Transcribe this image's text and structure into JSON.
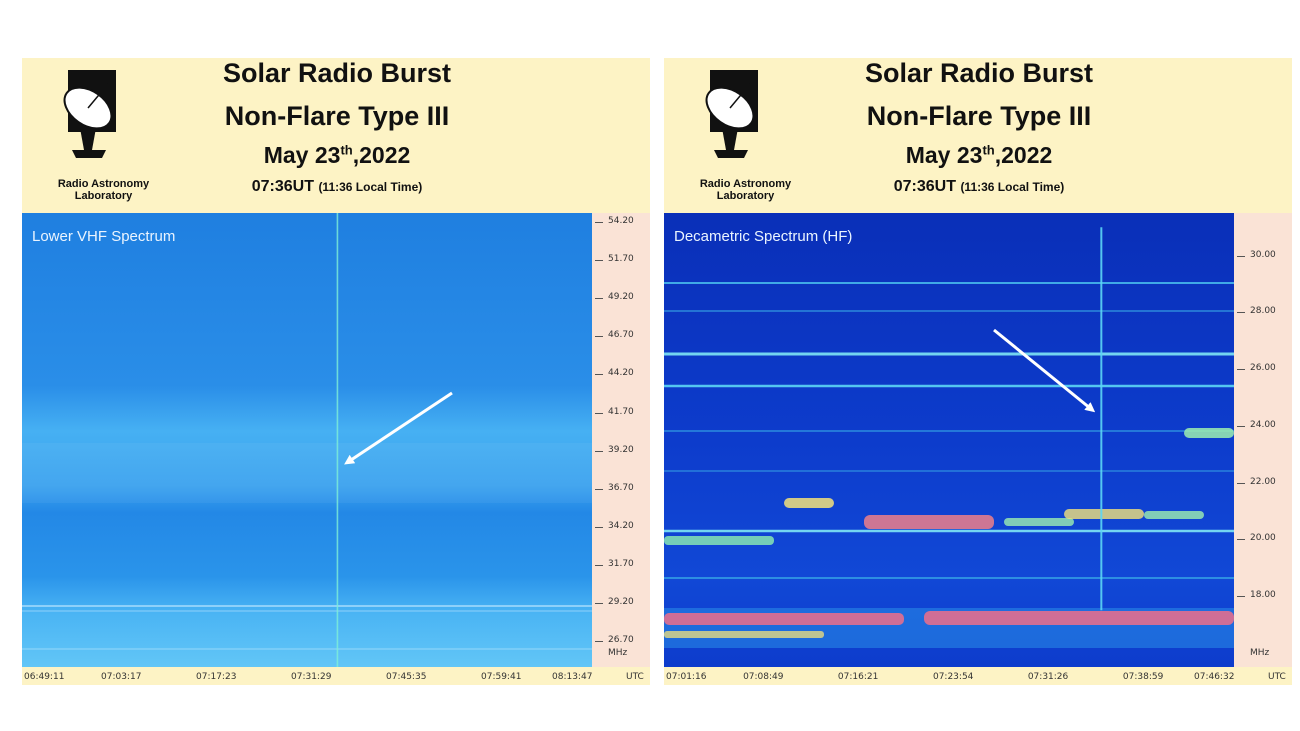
{
  "panels": [
    {
      "lab_name": "Radio Astronomy Laboratory",
      "title_line1": "Solar Radio Burst",
      "title_line2": "Non-Flare Type III",
      "date_main": "May 23",
      "date_sup": "th",
      "date_tail": ",2022",
      "time_main": "07:36UT",
      "time_local": "(11:36 Local Time)",
      "spectrum_label": "Lower VHF Spectrum",
      "y_unit": "MHz",
      "x_unit": "UTC",
      "colors": {
        "background": "#2a8ee8",
        "burst": "#7ff0d8",
        "arrow": "#ffffff"
      }
    },
    {
      "lab_name": "Radio Astronomy Laboratory",
      "title_line1": "Solar Radio Burst",
      "title_line2": "Non-Flare Type III",
      "date_main": "May 23",
      "date_sup": "th",
      "date_tail": ",2022",
      "time_main": "07:36UT",
      "time_local": "(11:36 Local Time)",
      "spectrum_label": "Decametric Spectrum (HF)",
      "y_unit": "MHz",
      "x_unit": "UTC",
      "colors": {
        "background": "#0d36c8",
        "burst": "#5cd6f5",
        "arrow": "#ffffff"
      }
    }
  ],
  "chart_data": [
    {
      "type": "heatmap",
      "title": "Lower VHF Spectrum",
      "ylabel": "MHz",
      "xlabel": "UTC",
      "y_ticks": [
        "54.20",
        "51.70",
        "49.20",
        "46.70",
        "44.20",
        "41.70",
        "39.20",
        "36.70",
        "34.20",
        "31.70",
        "29.20",
        "26.70"
      ],
      "x_ticks": [
        "06:49:11",
        "07:03:17",
        "07:17:23",
        "07:31:29",
        "07:45:35",
        "07:59:41",
        "08:13:47"
      ],
      "ylim": [
        25.0,
        54.8
      ],
      "xlim_minutes": [
        0,
        84.6
      ],
      "burst": {
        "time": "07:36",
        "freq_range": [
          25.0,
          54.8
        ]
      },
      "arrow_target": {
        "time": "07:36",
        "freq": 38.0
      }
    },
    {
      "type": "heatmap",
      "title": "Decametric Spectrum (HF)",
      "ylabel": "MHz",
      "xlabel": "UTC",
      "y_ticks": [
        "30.00",
        "28.00",
        "26.00",
        "24.00",
        "22.00",
        "20.00",
        "18.00"
      ],
      "x_ticks": [
        "07:01:16",
        "07:08:49",
        "07:16:21",
        "07:23:54",
        "07:31:26",
        "07:38:59",
        "07:46:32"
      ],
      "ylim": [
        15.5,
        31.5
      ],
      "xlim_minutes": [
        0,
        45.27
      ],
      "burst": {
        "time": "07:36",
        "freq_range": [
          17.5,
          31.0
        ]
      },
      "arrow_target": {
        "time": "07:36",
        "freq": 24.3
      }
    }
  ]
}
